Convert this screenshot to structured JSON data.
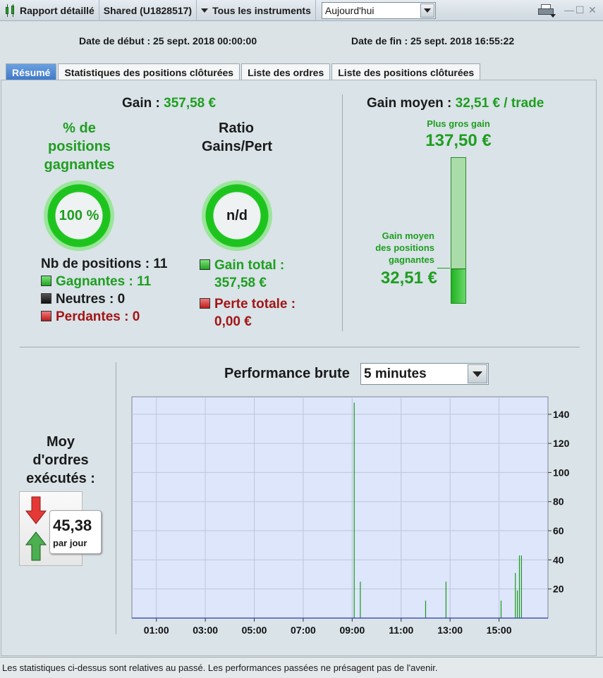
{
  "toolbar": {
    "report_label": "Rapport détaillé",
    "account_label": "Shared (U1828517)",
    "instruments_label": "Tous les instruments",
    "period_value": "Aujourd'hui",
    "min_glyph": "—",
    "max_glyph": "☐",
    "close_glyph": "✕"
  },
  "dates": {
    "start": "Date de début : 25 sept. 2018 00:00:00",
    "end": "Date de fin : 25 sept. 2018 16:55:22"
  },
  "tabs": [
    {
      "label": "Résumé",
      "active": true
    },
    {
      "label": "Statistiques des positions clôturées",
      "active": false
    },
    {
      "label": "Liste des ordres",
      "active": false
    },
    {
      "label": "Liste des positions clôturées",
      "active": false
    }
  ],
  "summary": {
    "gain_label": "Gain :",
    "gain_value": "357,58 €",
    "win_pct_title_1": "% de",
    "win_pct_title_2": "positions",
    "win_pct_title_3": "gagnantes",
    "win_pct_value": "100 %",
    "ratio_title_1": "Ratio",
    "ratio_title_2": "Gains/Pert",
    "ratio_value": "n/d",
    "positions_count": "Nb de positions : 11",
    "winners": "Gagnantes : 11",
    "neutral": "Neutres : 0",
    "losers": "Perdantes : 0",
    "total_gain_label": "Gain total :",
    "total_gain_value": "357,58 €",
    "total_loss_label": "Perte totale :",
    "total_loss_value": "0,00 €"
  },
  "average": {
    "label": "Gain moyen :",
    "value": "32,51 € / trade",
    "biggest_label": "Plus gros gain",
    "biggest_value": "137,50 €",
    "avg_win_label_1": "Gain moyen",
    "avg_win_label_2": "des positions",
    "avg_win_label_3": "gagnantes",
    "avg_win_value": "32,51 €",
    "fill_fraction": 0.2364
  },
  "orders": {
    "title_1": "Moy",
    "title_2": "d'ordres",
    "title_3": "exécutés :",
    "value": "45,38",
    "unit": "par jour"
  },
  "chart_title": "Performance brute",
  "chart_interval": "5 minutes",
  "chart_data": {
    "type": "bar",
    "xlabel": "",
    "ylabel": "",
    "x_ticks": [
      "01:00",
      "03:00",
      "05:00",
      "07:00",
      "09:00",
      "11:00",
      "13:00",
      "15:00"
    ],
    "y_ticks": [
      20,
      40,
      60,
      80,
      100,
      120,
      140
    ],
    "xlim": [
      "00:00",
      "17:00"
    ],
    "ylim": [
      0,
      152
    ],
    "grid": true,
    "bars": [
      {
        "t": "09:05",
        "v": 148
      },
      {
        "t": "09:20",
        "v": 25
      },
      {
        "t": "12:00",
        "v": 12
      },
      {
        "t": "12:50",
        "v": 25
      },
      {
        "t": "15:05",
        "v": 12
      },
      {
        "t": "15:40",
        "v": 31
      },
      {
        "t": "15:45",
        "v": 19
      },
      {
        "t": "15:50",
        "v": 43
      },
      {
        "t": "15:55",
        "v": 43
      }
    ]
  },
  "footer": "Les statistiques ci-dessus sont relatives au passé. Les performances passées ne présagent pas de l'avenir."
}
